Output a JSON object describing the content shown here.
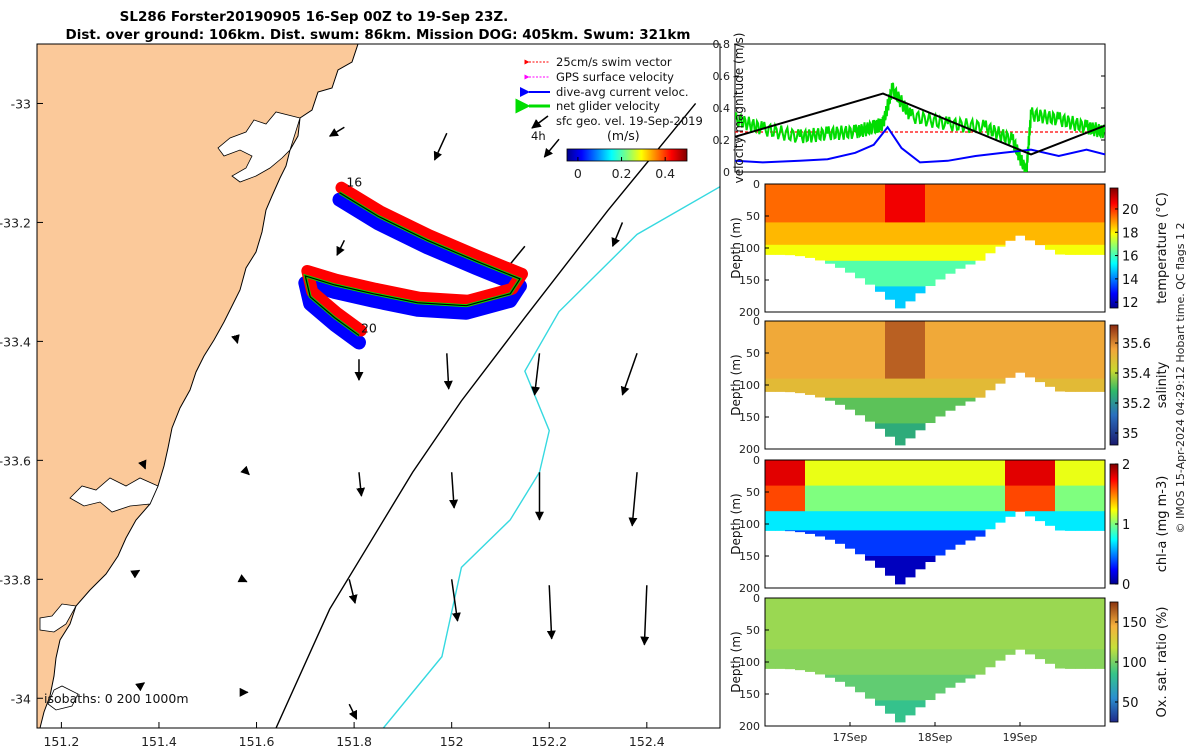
{
  "title_line1": "SL286 Forster20190905 16-Sep 00Z to 19-Sep 23Z.",
  "title_line2": "Dist. over ground: 106km. Dist. swum: 86km. Mission DOG: 405km. Swum: 321km",
  "copyright": "© IMOS 15-Apr-2024 04:29:12 Hobart time. QC flags 1  2",
  "chart_data": [
    {
      "type": "map",
      "name": "glider track map",
      "xlim": [
        151.15,
        152.55
      ],
      "ylim": [
        -34.05,
        -32.9
      ],
      "xticks": [
        151.2,
        151.4,
        151.6,
        151.8,
        152,
        152.2,
        152.4
      ],
      "xtick_labels": [
        "151.2",
        "151.4",
        "151.6",
        "151.8",
        "152",
        "152.2",
        "152.4"
      ],
      "yticks": [
        -33,
        -33.2,
        -33.4,
        -33.6,
        -33.8,
        -34
      ],
      "ytick_labels": [
        "-33",
        "-33.2",
        "-33.4",
        "-33.6",
        "-33.8",
        "-34"
      ],
      "legend": [
        {
          "label": "25cm/s swim vector",
          "color": "#ff0000"
        },
        {
          "label": "GPS surface velocity",
          "color": "#ff00ff"
        },
        {
          "label": "dive-avg current veloc.",
          "color": "#0000ff"
        },
        {
          "label": "net glider velocity",
          "color": "#00dd00"
        },
        {
          "label": "sfc geo. vel. 19-Sep-2019",
          "color": "#000000"
        }
      ],
      "legend_extra": "4h",
      "colorbar": {
        "label": "(m/s)",
        "ticks": [
          0,
          0.2,
          0.4
        ],
        "tick_labels": [
          "0",
          "0.2",
          "0.4"
        ],
        "range": [
          -0.05,
          0.5
        ]
      },
      "isobath_label": "isobaths: 0   200  1000m",
      "track_labels": [
        {
          "text": "16",
          "lon": 151.78,
          "lat": -33.14
        },
        {
          "text": "20",
          "lon": 151.81,
          "lat": -33.385
        }
      ],
      "track": [
        [
          151.77,
          -33.15
        ],
        [
          151.85,
          -33.19
        ],
        [
          151.95,
          -33.23
        ],
        [
          152.05,
          -33.265
        ],
        [
          152.14,
          -33.295
        ],
        [
          152.12,
          -33.32
        ],
        [
          152.03,
          -33.34
        ],
        [
          151.93,
          -33.335
        ],
        [
          151.84,
          -33.32
        ],
        [
          151.76,
          -33.305
        ],
        [
          151.7,
          -33.29
        ],
        [
          151.71,
          -33.325
        ],
        [
          151.76,
          -33.36
        ],
        [
          151.81,
          -33.39
        ]
      ],
      "isobath_200": [
        [
          151.64,
          -34.05
        ],
        [
          151.75,
          -33.85
        ],
        [
          151.92,
          -33.62
        ],
        [
          152.02,
          -33.5
        ],
        [
          152.15,
          -33.36
        ],
        [
          152.32,
          -33.18
        ],
        [
          152.5,
          -33.0
        ]
      ],
      "isobath_1000": [
        [
          151.86,
          -34.05
        ],
        [
          151.98,
          -33.93
        ],
        [
          152.02,
          -33.78
        ],
        [
          152.12,
          -33.7
        ],
        [
          152.18,
          -33.62
        ],
        [
          152.2,
          -33.55
        ],
        [
          152.15,
          -33.45
        ],
        [
          152.22,
          -33.35
        ],
        [
          152.38,
          -33.22
        ],
        [
          152.55,
          -33.14
        ]
      ],
      "geo_vectors": [
        [
          151.78,
          -33.04,
          -0.03,
          -0.015
        ],
        [
          151.99,
          -33.05,
          -0.025,
          -0.045
        ],
        [
          152.22,
          -33.06,
          -0.03,
          -0.03
        ],
        [
          151.78,
          -33.23,
          -0.015,
          -0.025
        ],
        [
          152.15,
          -33.24,
          -0.045,
          -0.045
        ],
        [
          152.35,
          -33.2,
          -0.02,
          -0.04
        ],
        [
          151.56,
          -33.4,
          0.001,
          -0.003
        ],
        [
          151.81,
          -33.43,
          0.0,
          -0.035
        ],
        [
          151.99,
          -33.42,
          0.004,
          -0.06
        ],
        [
          152.18,
          -33.42,
          -0.01,
          -0.07
        ],
        [
          152.38,
          -33.42,
          -0.03,
          -0.07
        ],
        [
          151.37,
          -33.61,
          0.002,
          -0.004
        ],
        [
          151.58,
          -33.62,
          0.005,
          -0.004
        ],
        [
          151.81,
          -33.62,
          0.005,
          -0.04
        ],
        [
          152.0,
          -33.62,
          0.005,
          -0.06
        ],
        [
          152.18,
          -33.62,
          0.0,
          -0.08
        ],
        [
          152.38,
          -33.62,
          -0.01,
          -0.09
        ],
        [
          151.35,
          -33.79,
          0.01,
          0.005
        ],
        [
          151.57,
          -33.8,
          0.01,
          -0.004
        ],
        [
          151.79,
          -33.8,
          0.012,
          -0.04
        ],
        [
          152.0,
          -33.8,
          0.012,
          -0.07
        ],
        [
          152.2,
          -33.81,
          0.005,
          -0.09
        ],
        [
          152.4,
          -33.81,
          -0.005,
          -0.1
        ],
        [
          151.36,
          -33.98,
          0.01,
          0.006
        ],
        [
          151.57,
          -33.99,
          0.012,
          0.0
        ],
        [
          151.79,
          -34.01,
          0.015,
          -0.025
        ]
      ]
    },
    {
      "type": "line",
      "name": "velocity magnitude",
      "ylabel": "velocity magnitude (m/s)",
      "ylim": [
        0,
        0.8
      ],
      "yticks": [
        0,
        0.2,
        0.4,
        0.6,
        0.8
      ],
      "ytick_labels": [
        "0",
        "0.2",
        "0.4",
        "0.6",
        "0.8"
      ],
      "xlim": [
        0,
        4
      ],
      "series": [
        {
          "name": "swim",
          "color": "#ff0000",
          "x": [
            0,
            4
          ],
          "y": [
            0.25,
            0.25
          ]
        },
        {
          "name": "net glider",
          "color": "#00dd00",
          "x": [
            0,
            0.3,
            0.7,
            1.0,
            1.3,
            1.5,
            1.6,
            1.7,
            1.9,
            2.3,
            2.7,
            3.0,
            3.15,
            3.2,
            3.5,
            3.8,
            4.0
          ],
          "y": [
            0.33,
            0.27,
            0.22,
            0.24,
            0.25,
            0.28,
            0.3,
            0.52,
            0.35,
            0.3,
            0.28,
            0.2,
            0.0,
            0.36,
            0.33,
            0.28,
            0.25
          ]
        },
        {
          "name": "dive-avg current",
          "color": "#0000ff",
          "x": [
            0,
            0.3,
            0.7,
            1.0,
            1.3,
            1.5,
            1.65,
            1.8,
            2.0,
            2.3,
            2.6,
            2.9,
            3.2,
            3.5,
            3.8,
            4.0
          ],
          "y": [
            0.07,
            0.06,
            0.07,
            0.08,
            0.12,
            0.17,
            0.28,
            0.15,
            0.06,
            0.07,
            0.1,
            0.12,
            0.14,
            0.1,
            0.14,
            0.11
          ]
        },
        {
          "name": "glider speed",
          "color": "#000000",
          "x": [
            0,
            1.6,
            3.2,
            4.0
          ],
          "y": [
            0.22,
            0.49,
            0.11,
            0.29
          ]
        }
      ]
    },
    {
      "type": "heatmap",
      "name": "temperature section",
      "ylabel": "Depth (m)",
      "ylim": [
        200,
        0
      ],
      "yticks": [
        0,
        50,
        100,
        150,
        200
      ],
      "ytick_labels": [
        "0",
        "50",
        "100",
        "150",
        "200"
      ],
      "colorbar_label": "temperature (°C)",
      "colorbar_ticks": [
        12,
        14,
        16,
        18,
        20
      ],
      "colorbar_tick_labels": [
        "12",
        "14",
        "16",
        "18",
        "20"
      ],
      "colorbar_range": [
        11.5,
        21.8
      ],
      "bands": [
        {
          "depth": 0,
          "value": 19.4
        },
        {
          "depth": 60,
          "value": 18.6
        },
        {
          "depth": 95,
          "value": 17.8
        },
        {
          "depth": 120,
          "value": 16.2
        },
        {
          "depth": 160,
          "value": 14.8
        },
        {
          "depth": 200,
          "value": 13.2
        }
      ]
    },
    {
      "type": "heatmap",
      "name": "salinity section",
      "ylabel": "Depth (m)",
      "ylim": [
        200,
        0
      ],
      "yticks": [
        0,
        50,
        100,
        150,
        200
      ],
      "ytick_labels": [
        "0",
        "50",
        "100",
        "150",
        "200"
      ],
      "colorbar_label": "salinity",
      "colorbar_ticks": [
        35,
        35.2,
        35.4,
        35.6
      ],
      "colorbar_tick_labels": [
        "35",
        "35.2",
        "35.4",
        "35.6"
      ],
      "colorbar_range": [
        34.92,
        35.72
      ],
      "bands": [
        {
          "depth": 0,
          "value": 35.55
        },
        {
          "depth": 90,
          "value": 35.5
        },
        {
          "depth": 120,
          "value": 35.32
        },
        {
          "depth": 160,
          "value": 35.25
        },
        {
          "depth": 200,
          "value": 35.1
        }
      ]
    },
    {
      "type": "heatmap",
      "name": "chlorophyll section",
      "ylabel": "Depth (m)",
      "ylim": [
        200,
        0
      ],
      "yticks": [
        0,
        50,
        100,
        150,
        200
      ],
      "ytick_labels": [
        "0",
        "50",
        "100",
        "150",
        "200"
      ],
      "colorbar_label": "chl-a (mg m-3)",
      "colorbar_ticks": [
        0,
        1,
        2
      ],
      "colorbar_tick_labels": [
        "0",
        "1",
        "2"
      ],
      "colorbar_range": [
        0,
        2
      ],
      "bands": [
        {
          "depth": 0,
          "value": 1.2
        },
        {
          "depth": 40,
          "value": 1.0
        },
        {
          "depth": 80,
          "value": 0.7
        },
        {
          "depth": 110,
          "value": 0.35
        },
        {
          "depth": 150,
          "value": 0.1
        },
        {
          "depth": 200,
          "value": 0.05
        }
      ]
    },
    {
      "type": "heatmap",
      "name": "oxygen saturation section",
      "ylabel": "Depth (m)",
      "ylim": [
        200,
        0
      ],
      "yticks": [
        0,
        50,
        100,
        150,
        200
      ],
      "ytick_labels": [
        "0",
        "50",
        "100",
        "150",
        "200"
      ],
      "colorbar_label": "Ox. sat. ratio (%)",
      "colorbar_ticks": [
        50,
        100,
        150
      ],
      "colorbar_tick_labels": [
        "50",
        "100",
        "150"
      ],
      "colorbar_range": [
        25,
        175
      ],
      "bands": [
        {
          "depth": 0,
          "value": 108
        },
        {
          "depth": 80,
          "value": 104
        },
        {
          "depth": 120,
          "value": 95
        },
        {
          "depth": 160,
          "value": 84
        },
        {
          "depth": 200,
          "value": 75
        }
      ],
      "xticks": [
        1,
        2,
        3
      ],
      "xtick_labels": [
        "17Sep",
        "18Sep",
        "19Sep"
      ],
      "xlim": [
        0,
        4
      ]
    }
  ]
}
